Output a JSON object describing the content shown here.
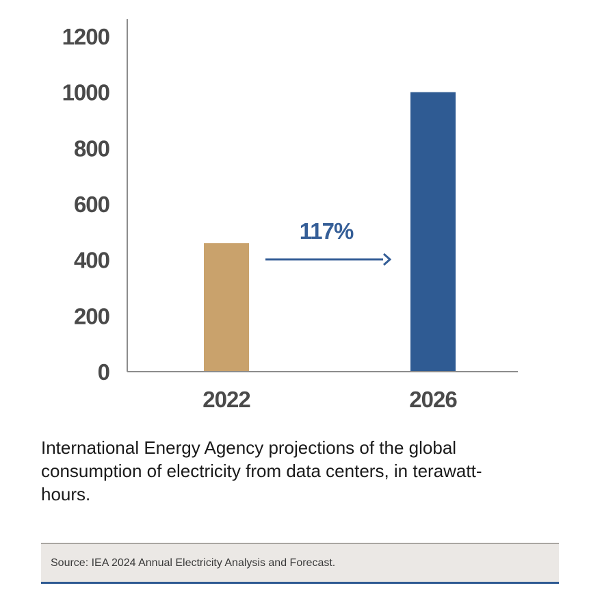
{
  "chart_data": {
    "type": "bar",
    "categories": [
      "2022",
      "2026"
    ],
    "values": [
      460,
      1000
    ],
    "bar_colors": [
      "#c9a26c",
      "#2f5b93"
    ],
    "ylim": [
      0,
      1200
    ],
    "yticks": [
      "0",
      "200",
      "400",
      "600",
      "800",
      "1000",
      "1200"
    ],
    "xlabel": "",
    "ylabel": "",
    "grid": false,
    "annotation": {
      "text": "117%",
      "color": "#355e97"
    }
  },
  "caption": "International Energy Agency projections of the global consumption of electricity from data centers, in terawatt-hours.",
  "source": "Source: IEA 2024 Annual Electricity Analysis and Forecast.",
  "colors": {
    "axis": "#8c8c8c",
    "tick_text": "#4a4a4a",
    "accent_blue": "#2f5b93",
    "source_bg": "#ebe8e5"
  }
}
